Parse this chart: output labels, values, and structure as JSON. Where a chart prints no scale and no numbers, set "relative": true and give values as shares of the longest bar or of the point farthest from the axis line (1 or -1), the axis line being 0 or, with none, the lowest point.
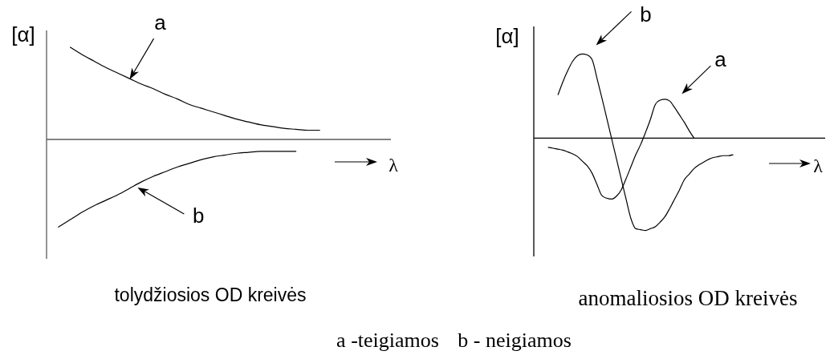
{
  "chart_data": [
    {
      "type": "line",
      "title": "tolydžiosios OD kreivės",
      "xlabel": "λ",
      "ylabel": "[α]",
      "relative": true,
      "categories": [
        null,
        null,
        null,
        null,
        null,
        null,
        null,
        null,
        null,
        null,
        null,
        null,
        null,
        null,
        null,
        null,
        null,
        null,
        null,
        null,
        null,
        null,
        null,
        null,
        null,
        null,
        null,
        null,
        null,
        null
      ],
      "series": [
        {
          "name": "a",
          "color": "#000000",
          "values": [
            null,
            null,
            1.0,
            0.92,
            0.85,
            0.78,
            0.72,
            0.66,
            0.6,
            0.55,
            0.49,
            0.44,
            0.38,
            0.34,
            0.3,
            0.26,
            0.22,
            0.19,
            0.16,
            0.14,
            0.12,
            0.11,
            0.1,
            0.1,
            null,
            null,
            null,
            null,
            null,
            null
          ]
        },
        {
          "name": "b",
          "color": "#000000",
          "values": [
            null,
            -0.95,
            -0.87,
            -0.79,
            -0.72,
            -0.66,
            -0.6,
            -0.53,
            -0.46,
            -0.4,
            -0.35,
            -0.3,
            -0.26,
            -0.22,
            -0.19,
            -0.17,
            -0.15,
            -0.14,
            -0.13,
            -0.13,
            -0.13,
            -0.13,
            null,
            null,
            null,
            null,
            null,
            null,
            null,
            null
          ]
        }
      ]
    },
    {
      "type": "line",
      "title": "anomaliosios OD kreivės",
      "xlabel": "λ",
      "ylabel": "[α]",
      "relative": true,
      "annotations": [
        "a -teigiamos",
        "b - neigiamos"
      ],
      "categories": [
        null,
        null,
        null,
        null,
        null,
        null,
        null,
        null,
        null,
        null,
        null,
        null,
        null,
        null,
        null,
        null,
        null,
        null,
        null,
        null,
        null,
        null,
        null,
        null,
        null,
        null,
        null,
        null,
        null,
        null,
        null,
        null,
        null,
        null,
        null,
        null,
        null,
        null,
        null,
        null,
        null,
        null,
        null,
        null,
        null,
        null,
        null,
        null,
        null,
        null,
        null,
        null,
        null,
        null,
        null,
        null,
        null,
        null,
        null,
        null,
        null
      ],
      "series": [
        {
          "name": "a",
          "color": "#000000",
          "values": [
            null,
            null,
            null,
            -0.1,
            -0.11,
            -0.12,
            -0.13,
            -0.15,
            -0.17,
            -0.2,
            -0.25,
            -0.3,
            -0.38,
            -0.5,
            -0.62,
            -0.65,
            -0.66,
            -0.63,
            -0.56,
            -0.44,
            -0.31,
            -0.18,
            -0.07,
            0.06,
            0.2,
            0.36,
            0.41,
            0.42,
            0.4,
            0.33,
            0.25,
            0.17,
            0.08,
            0.0,
            null,
            null,
            null,
            null,
            null,
            null,
            null,
            null,
            null,
            null,
            null,
            null,
            null,
            null,
            null,
            null,
            null,
            null,
            null,
            null,
            null,
            null,
            null,
            null,
            null,
            null,
            null
          ]
        },
        {
          "name": "b",
          "color": "#000000",
          "values": [
            null,
            null,
            null,
            null,
            null,
            0.47,
            0.61,
            0.73,
            0.83,
            0.89,
            0.91,
            0.9,
            0.85,
            0.65,
            0.44,
            0.22,
            0.0,
            -0.22,
            -0.44,
            -0.66,
            -0.87,
            -0.98,
            -0.99,
            -1.0,
            -0.98,
            -0.96,
            -0.91,
            -0.85,
            -0.76,
            -0.66,
            -0.56,
            -0.45,
            -0.39,
            -0.33,
            -0.29,
            -0.26,
            -0.23,
            -0.21,
            -0.2,
            -0.19,
            -0.19,
            -0.18,
            null,
            null,
            null,
            null,
            null,
            null,
            null,
            null,
            null,
            null,
            null,
            null,
            null,
            null,
            null,
            null,
            null,
            null,
            null
          ]
        }
      ]
    }
  ]
}
